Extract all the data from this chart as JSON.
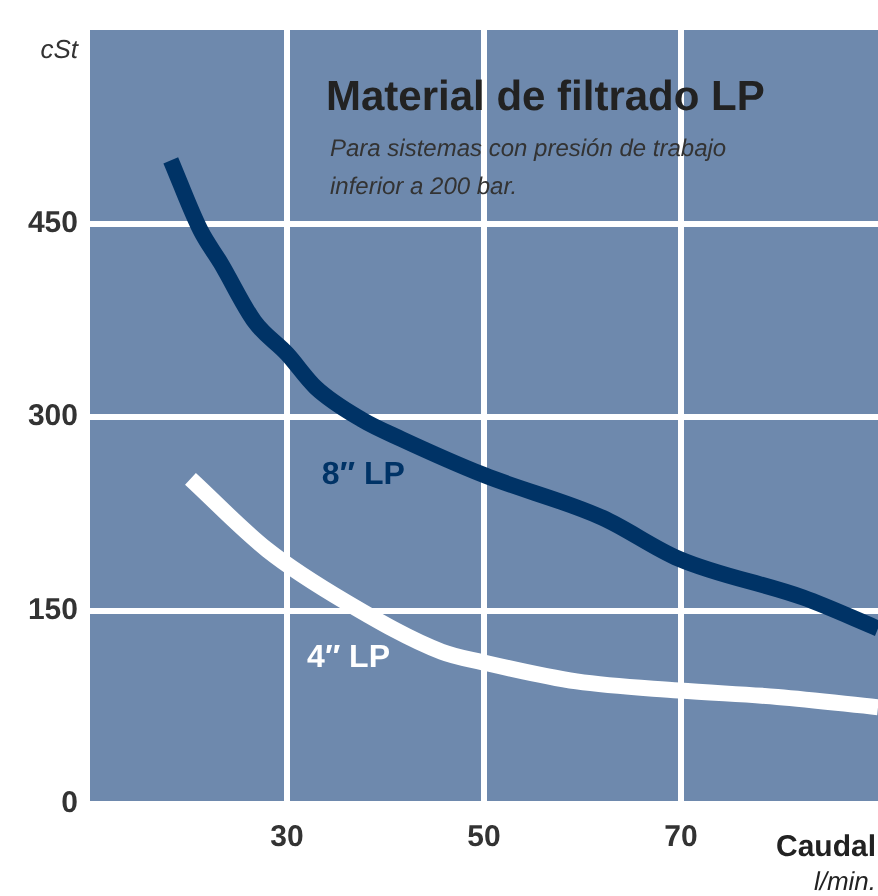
{
  "chart_data": {
    "type": "line",
    "title": "Material de filtrado LP",
    "subtitle": "Para sistemas con presión de trabajo inferior a 200 bar.",
    "xlabel": "Caudal\nl/min.",
    "ylabel": "cSt",
    "xlim": [
      10,
      90
    ],
    "xticks": [
      30,
      50,
      70
    ],
    "ylim": [
      0,
      600
    ],
    "yticks": [
      0,
      150,
      300,
      450
    ],
    "grid": true,
    "legend": false,
    "marker": "none",
    "series": [
      {
        "name": "8″ LP",
        "color": "#003366",
        "x": [
          18.2,
          21.2,
          23.3,
          26.7,
          30,
          32.9,
          37.6,
          41.6,
          50,
          62,
          69.8,
          82.4,
          90
        ],
        "values": [
          499,
          445,
          419,
          374,
          349,
          323,
          298,
          283,
          255,
          222,
          190,
          160,
          136
        ]
      },
      {
        "name": "4″ LP",
        "color": "#ffffff",
        "x": [
          20.2,
          28,
          36.1,
          45.7,
          49.8,
          59.4,
          69.8,
          79.8,
          90
        ],
        "values": [
          252,
          197,
          156,
          118,
          110,
          95,
          88,
          83,
          75
        ]
      }
    ]
  }
}
